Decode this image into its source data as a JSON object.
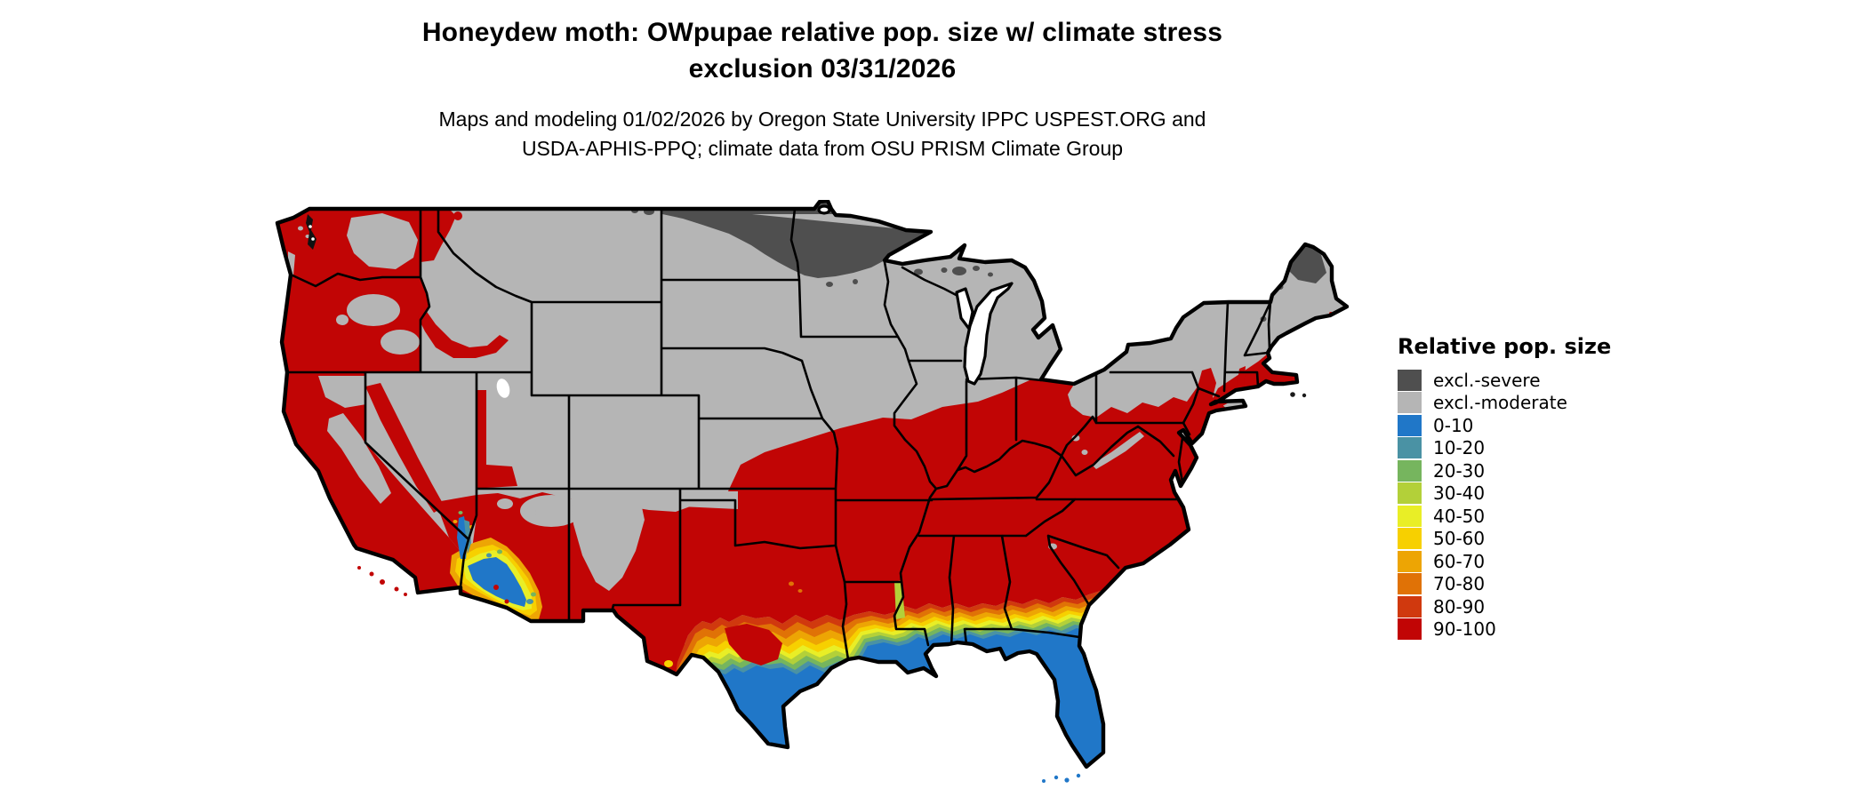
{
  "title": {
    "line1": "Honeydew moth: OWpupae relative pop. size w/ climate stress",
    "line2": "exclusion 03/31/2026"
  },
  "subtitle": {
    "line1": "Maps and modeling 01/02/2026 by Oregon State University IPPC USPEST.ORG and",
    "line2": "USDA-APHIS-PPQ; climate data from OSU PRISM Climate Group"
  },
  "legend": {
    "title": "Relative pop. size",
    "items": [
      {
        "label": "excl.-severe",
        "color": "#4f4f4f"
      },
      {
        "label": "excl.-moderate",
        "color": "#b5b5b5"
      },
      {
        "label": "0-10",
        "color": "#2077c8"
      },
      {
        "label": "10-20",
        "color": "#4a92a4"
      },
      {
        "label": "20-30",
        "color": "#76b55e"
      },
      {
        "label": "30-40",
        "color": "#b3d039"
      },
      {
        "label": "40-50",
        "color": "#e9ee26"
      },
      {
        "label": "50-60",
        "color": "#f7d000"
      },
      {
        "label": "60-70",
        "color": "#eda504"
      },
      {
        "label": "70-80",
        "color": "#e07206"
      },
      {
        "label": "80-90",
        "color": "#d0390e"
      },
      {
        "label": "90-100",
        "color": "#c10505"
      }
    ]
  }
}
